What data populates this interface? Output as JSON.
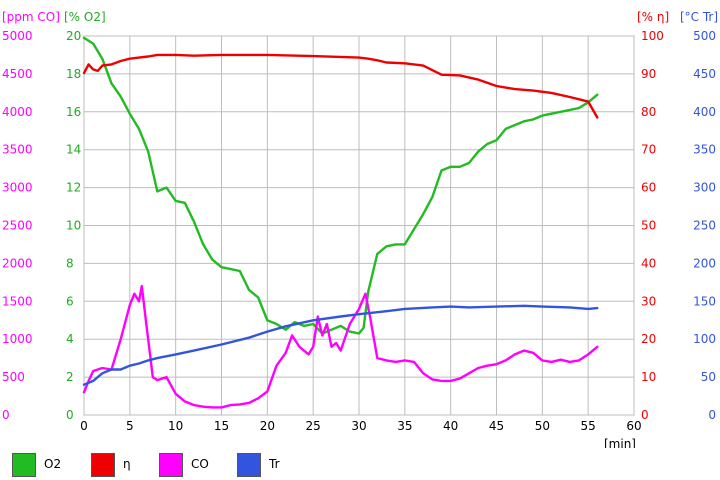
{
  "chart_data": {
    "type": "line",
    "xlabel": "[min]",
    "xlim": [
      0,
      60
    ],
    "xticks": [
      0,
      5,
      10,
      15,
      20,
      25,
      30,
      35,
      40,
      45,
      50,
      55,
      60
    ],
    "grid": true,
    "legend_position": "bottom",
    "axes": [
      {
        "id": "co",
        "label": "[ppm CO]",
        "side": "left-outer",
        "color": "#ff00ff",
        "lim": [
          0,
          5000
        ],
        "ticks": [
          0,
          500,
          1000,
          1500,
          2000,
          2500,
          3000,
          3500,
          4000,
          4500,
          5000
        ]
      },
      {
        "id": "o2",
        "label": "[% O2]",
        "side": "left-inner",
        "color": "#22aa22",
        "lim": [
          0,
          20
        ],
        "ticks": [
          0,
          2,
          4,
          6,
          8,
          10,
          12,
          14,
          16,
          18,
          20
        ]
      },
      {
        "id": "eta",
        "label": "[% η]",
        "side": "right-inner",
        "color": "#ee0000",
        "lim": [
          0,
          100
        ],
        "ticks": [
          0,
          10,
          20,
          30,
          40,
          50,
          60,
          70,
          80,
          90,
          100
        ]
      },
      {
        "id": "tr",
        "label": "[°C Tr]",
        "side": "right-outer",
        "color": "#3355dd",
        "lim": [
          0,
          500
        ],
        "ticks": [
          0,
          50,
          100,
          150,
          200,
          250,
          300,
          350,
          400,
          450,
          500
        ]
      }
    ],
    "series": [
      {
        "name": "O2",
        "axis": "o2",
        "color": "#22bb22",
        "x": [
          0,
          1,
          2,
          3,
          4,
          5,
          6,
          7,
          8,
          9,
          10,
          11,
          12,
          13,
          14,
          15,
          16,
          17,
          18,
          19,
          20,
          21,
          22,
          23,
          24,
          25,
          26,
          27,
          28,
          29,
          30,
          30.5,
          31,
          32,
          33,
          34,
          35,
          36,
          37,
          38,
          39,
          40,
          41,
          42,
          43,
          44,
          45,
          46,
          47,
          48,
          49,
          50,
          51,
          52,
          53,
          54,
          55,
          56
        ],
        "y": [
          19.9,
          19.6,
          18.8,
          17.5,
          16.8,
          15.9,
          15.1,
          13.9,
          11.8,
          12.0,
          11.3,
          11.2,
          10.2,
          9.0,
          8.2,
          7.8,
          7.7,
          7.6,
          6.6,
          6.2,
          5.0,
          4.8,
          4.5,
          4.9,
          4.7,
          4.8,
          4.3,
          4.5,
          4.7,
          4.4,
          4.3,
          4.6,
          6.5,
          8.5,
          8.9,
          9.0,
          9.0,
          9.8,
          10.6,
          11.5,
          12.9,
          13.1,
          13.1,
          13.3,
          13.9,
          14.3,
          14.5,
          15.1,
          15.3,
          15.5,
          15.6,
          15.8,
          15.9,
          16.0,
          16.1,
          16.2,
          16.5,
          16.9
        ]
      },
      {
        "name": "η",
        "axis": "eta",
        "color": "#ee0000",
        "x": [
          0,
          0.5,
          1,
          1.5,
          2,
          3,
          4,
          5,
          6,
          7,
          8,
          10,
          12,
          15,
          18,
          20,
          25,
          30,
          31,
          32,
          33,
          35,
          37,
          39,
          41,
          43,
          45,
          47,
          49,
          51,
          53,
          55,
          56
        ],
        "y": [
          90.2,
          92.5,
          91.2,
          90.8,
          92.2,
          92.5,
          93.4,
          94.0,
          94.3,
          94.6,
          95.0,
          95.0,
          94.8,
          95.0,
          95.0,
          95.0,
          94.7,
          94.3,
          94.0,
          93.6,
          93.0,
          92.8,
          92.2,
          89.8,
          89.6,
          88.5,
          86.8,
          86.0,
          85.6,
          85.0,
          83.9,
          82.7,
          78.5
        ]
      },
      {
        "name": "CO",
        "axis": "co",
        "color": "#ff00ff",
        "x": [
          0,
          0.5,
          1,
          2,
          3,
          4,
          5,
          5.5,
          6,
          6.3,
          6.8,
          7.5,
          8,
          9,
          10,
          11,
          12,
          13,
          14,
          15,
          16,
          17,
          18,
          19,
          20,
          21,
          22,
          22.7,
          23.5,
          24.5,
          25,
          25.5,
          26,
          26.5,
          27,
          27.5,
          28,
          29,
          30,
          30.7,
          31.2,
          32,
          33,
          34,
          35,
          36,
          37,
          38,
          39,
          40,
          41,
          42,
          43,
          44,
          45,
          46,
          47,
          48,
          49,
          50,
          51,
          52,
          53,
          54,
          55,
          56
        ],
        "y": [
          300,
          450,
          580,
          620,
          600,
          1000,
          1450,
          1600,
          1500,
          1700,
          1200,
          500,
          460,
          500,
          280,
          180,
          130,
          110,
          100,
          100,
          130,
          140,
          160,
          220,
          310,
          650,
          820,
          1050,
          900,
          800,
          900,
          1300,
          1050,
          1200,
          900,
          950,
          850,
          1200,
          1400,
          1600,
          1300,
          750,
          720,
          700,
          720,
          700,
          550,
          470,
          450,
          450,
          480,
          550,
          620,
          650,
          670,
          720,
          800,
          850,
          820,
          720,
          700,
          730,
          700,
          720,
          800,
          900
        ]
      },
      {
        "name": "Tr",
        "axis": "tr",
        "color": "#3355dd",
        "x": [
          0,
          1,
          2,
          3,
          4,
          5,
          6,
          7,
          8,
          10,
          12,
          15,
          18,
          20,
          22,
          25,
          28,
          30,
          33,
          35,
          38,
          40,
          42,
          45,
          48,
          50,
          53,
          55,
          56
        ],
        "y": [
          40,
          45,
          55,
          60,
          60,
          65,
          68,
          72,
          75,
          80,
          85,
          93,
          102,
          110,
          117,
          125,
          130,
          133,
          137,
          140,
          142,
          143,
          142,
          143,
          144,
          143,
          142,
          140,
          141
        ]
      }
    ]
  }
}
